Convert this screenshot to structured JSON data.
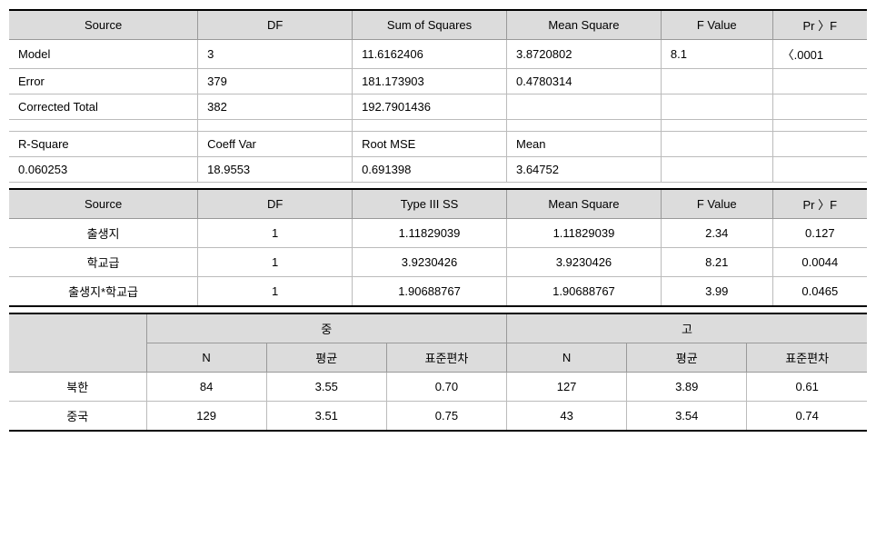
{
  "table1": {
    "headers": [
      "Source",
      "DF",
      "Sum of Squares",
      "Mean Square",
      "F Value",
      "Pr 〉F"
    ],
    "rows": [
      [
        "Model",
        "3",
        "11.6162406",
        "3.8720802",
        "8.1",
        "〈.0001"
      ],
      [
        "Error",
        "379",
        "181.173903",
        "0.4780314",
        "",
        ""
      ],
      [
        "Corrected   Total",
        "382",
        "192.7901436",
        "",
        "",
        ""
      ],
      [
        "",
        "",
        "",
        "",
        "",
        ""
      ],
      [
        "R-Square",
        "Coeff Var",
        "Root MSE",
        "Mean",
        "",
        ""
      ],
      [
        "0.060253",
        "18.9553",
        "0.691398",
        "3.64752",
        "",
        ""
      ]
    ],
    "col_widths": [
      "22%",
      "18%",
      "18%",
      "18%",
      "13%",
      "11%"
    ]
  },
  "table2": {
    "headers": [
      "Source",
      "DF",
      "Type III SS",
      "Mean Square",
      "F Value",
      "Pr 〉F"
    ],
    "rows": [
      [
        "출생지",
        "1",
        "1.11829039",
        "1.11829039",
        "2.34",
        "0.127"
      ],
      [
        "학교급",
        "1",
        "3.9230426",
        "3.9230426",
        "8.21",
        "0.0044"
      ],
      [
        "출생지*학교급",
        "1",
        "1.90688767",
        "1.90688767",
        "3.99",
        "0.0465"
      ]
    ],
    "col_widths": [
      "22%",
      "18%",
      "18%",
      "18%",
      "13%",
      "11%"
    ]
  },
  "table3": {
    "group1": "중",
    "group2": "고",
    "sub_headers": [
      "N",
      "평균",
      "표준편차"
    ],
    "rows": [
      {
        "label": "북한",
        "g1": [
          "84",
          "3.55",
          "0.70"
        ],
        "g2": [
          "127",
          "3.89",
          "0.61"
        ]
      },
      {
        "label": "중국",
        "g1": [
          "129",
          "3.51",
          "0.75"
        ],
        "g2": [
          "43",
          "3.54",
          "0.74"
        ]
      }
    ],
    "label_col_width": "16%",
    "data_col_width": "14%"
  }
}
